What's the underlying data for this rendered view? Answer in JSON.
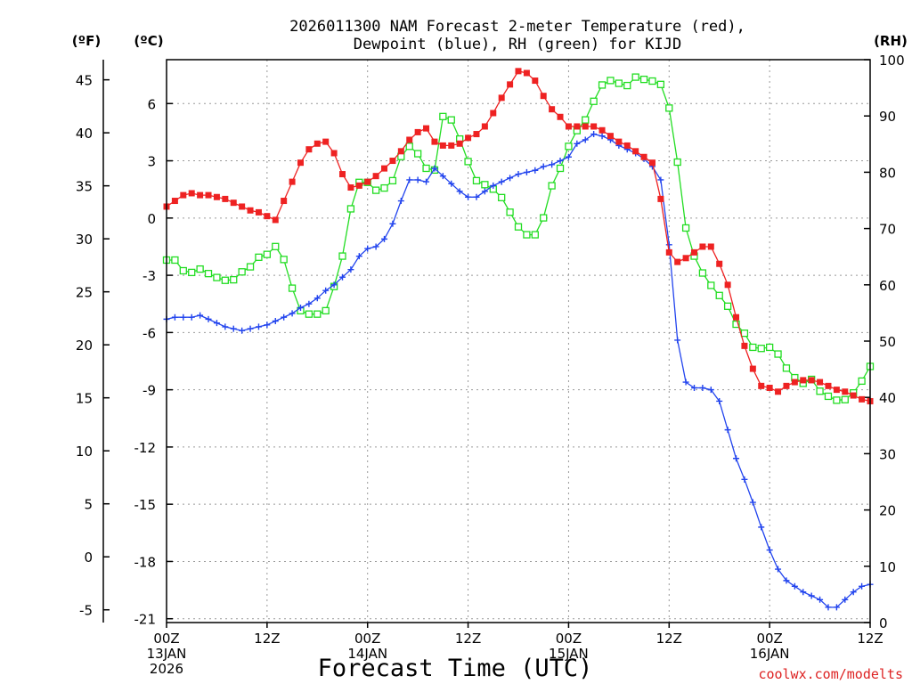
{
  "chart_data": {
    "type": "line",
    "title_lines": [
      "2026011300 NAM Forecast 2-meter Temperature (red),",
      "Dewpoint (blue), RH (green) for KIJD"
    ],
    "xlabel": "Forecast Time (UTC)",
    "credit": "coolwx.com/modelts",
    "left_unit_f": "(ºF)",
    "left_unit_c": "(ºC)",
    "right_unit": "(RH)",
    "fahrenheit_ticks": [
      "45",
      "40",
      "35",
      "30",
      "25",
      "20",
      "15",
      "10",
      "5",
      "0",
      "-5"
    ],
    "celsius_ticks": [
      "6",
      "3",
      "0",
      "-3",
      "-6",
      "-9",
      "-12",
      "-15",
      "-18",
      "-21"
    ],
    "rh_ticks": [
      "100",
      "90",
      "80",
      "70",
      "60",
      "50",
      "40",
      "30",
      "20",
      "10",
      "0"
    ],
    "x_ticks": [
      {
        "hour": 0,
        "lines": [
          "00Z",
          "13JAN",
          "2026"
        ]
      },
      {
        "hour": 12,
        "lines": [
          "12Z"
        ]
      },
      {
        "hour": 24,
        "lines": [
          "00Z",
          "14JAN"
        ]
      },
      {
        "hour": 36,
        "lines": [
          "12Z"
        ]
      },
      {
        "hour": 48,
        "lines": [
          "00Z",
          "15JAN"
        ]
      },
      {
        "hour": 60,
        "lines": [
          "12Z"
        ]
      },
      {
        "hour": 72,
        "lines": [
          "00Z",
          "16JAN"
        ]
      },
      {
        "hour": 84,
        "lines": [
          "12Z"
        ]
      }
    ],
    "x_range_hours": [
      0,
      84
    ],
    "celsius_range": [
      -21.2,
      8.3
    ],
    "rh_range": [
      0,
      100
    ],
    "fahrenheit_range": [
      -6.2,
      46.9
    ],
    "series": [
      {
        "name": "2-meter Temperature",
        "unit": "C",
        "color": "#ee2222",
        "marker": "filled-square",
        "values": [
          0.6,
          0.9,
          1.2,
          1.3,
          1.2,
          1.2,
          1.1,
          1.0,
          0.8,
          0.6,
          0.4,
          0.3,
          0.1,
          -0.1,
          0.9,
          1.9,
          2.9,
          3.6,
          3.9,
          4.0,
          3.4,
          2.3,
          1.6,
          1.7,
          1.9,
          2.2,
          2.6,
          3.0,
          3.5,
          4.1,
          4.5,
          4.7,
          4.0,
          3.8,
          3.8,
          3.9,
          4.2,
          4.4,
          4.8,
          5.5,
          6.3,
          7.0,
          7.7,
          7.6,
          7.2,
          6.4,
          5.7,
          5.3,
          4.8,
          4.8,
          4.8,
          4.8,
          4.6,
          4.3,
          4.0,
          3.8,
          3.5,
          3.2,
          2.9,
          1.0,
          -1.8,
          -2.3,
          -2.1,
          -1.8,
          -1.5,
          -1.5,
          -2.4,
          -3.5,
          -5.2,
          -6.7,
          -7.9,
          -8.8,
          -8.9,
          -9.1,
          -8.8,
          -8.6,
          -8.5,
          -8.5,
          -8.6,
          -8.8,
          -9.0,
          -9.1,
          -9.3,
          -9.5,
          -9.6
        ]
      },
      {
        "name": "Dewpoint",
        "unit": "C",
        "color": "#2244ee",
        "marker": "plus",
        "values": [
          -5.3,
          -5.2,
          -5.2,
          -5.2,
          -5.1,
          -5.3,
          -5.5,
          -5.7,
          -5.8,
          -5.9,
          -5.8,
          -5.7,
          -5.6,
          -5.4,
          -5.2,
          -5.0,
          -4.7,
          -4.5,
          -4.2,
          -3.8,
          -3.5,
          -3.1,
          -2.7,
          -2.0,
          -1.6,
          -1.5,
          -1.1,
          -0.3,
          0.9,
          2.0,
          2.0,
          1.9,
          2.6,
          2.2,
          1.8,
          1.4,
          1.1,
          1.1,
          1.4,
          1.7,
          1.9,
          2.1,
          2.3,
          2.4,
          2.5,
          2.7,
          2.8,
          3.0,
          3.2,
          3.9,
          4.1,
          4.4,
          4.3,
          4.1,
          3.8,
          3.6,
          3.4,
          3.1,
          2.7,
          2.0,
          -1.4,
          -6.4,
          -8.6,
          -8.9,
          -8.9,
          -9.0,
          -9.6,
          -11.1,
          -12.6,
          -13.7,
          -14.9,
          -16.2,
          -17.4,
          -18.4,
          -19.0,
          -19.3,
          -19.6,
          -19.8,
          -20.0,
          -20.4,
          -20.4,
          -20.0,
          -19.6,
          -19.3,
          -19.2
        ]
      },
      {
        "name": "Relative Humidity",
        "unit": "%",
        "color": "#22dd22",
        "marker": "open-square",
        "values": [
          64.4,
          64.4,
          62.5,
          62.2,
          62.8,
          62.0,
          61.3,
          60.8,
          60.9,
          62.3,
          63.2,
          64.9,
          65.4,
          66.8,
          64.5,
          59.4,
          55.4,
          54.8,
          54.8,
          55.4,
          59.7,
          65.1,
          73.5,
          78.2,
          78.2,
          76.8,
          77.2,
          78.5,
          82.8,
          84.6,
          83.3,
          80.7,
          80.4,
          89.9,
          89.3,
          85.9,
          81.9,
          78.5,
          77.8,
          77.0,
          75.5,
          72.9,
          70.3,
          68.9,
          68.9,
          71.9,
          77.6,
          80.7,
          84.6,
          87.4,
          89.3,
          92.6,
          95.5,
          96.3,
          95.8,
          95.4,
          96.9,
          96.5,
          96.2,
          95.6,
          91.4,
          81.8,
          70.1,
          65.1,
          62.1,
          59.9,
          58.1,
          56.2,
          53.0,
          51.4,
          48.9,
          48.7,
          48.9,
          47.7,
          45.2,
          43.5,
          42.5,
          43.2,
          41.1,
          40.2,
          39.5,
          39.6,
          40.8,
          42.9,
          45.5
        ]
      }
    ]
  }
}
